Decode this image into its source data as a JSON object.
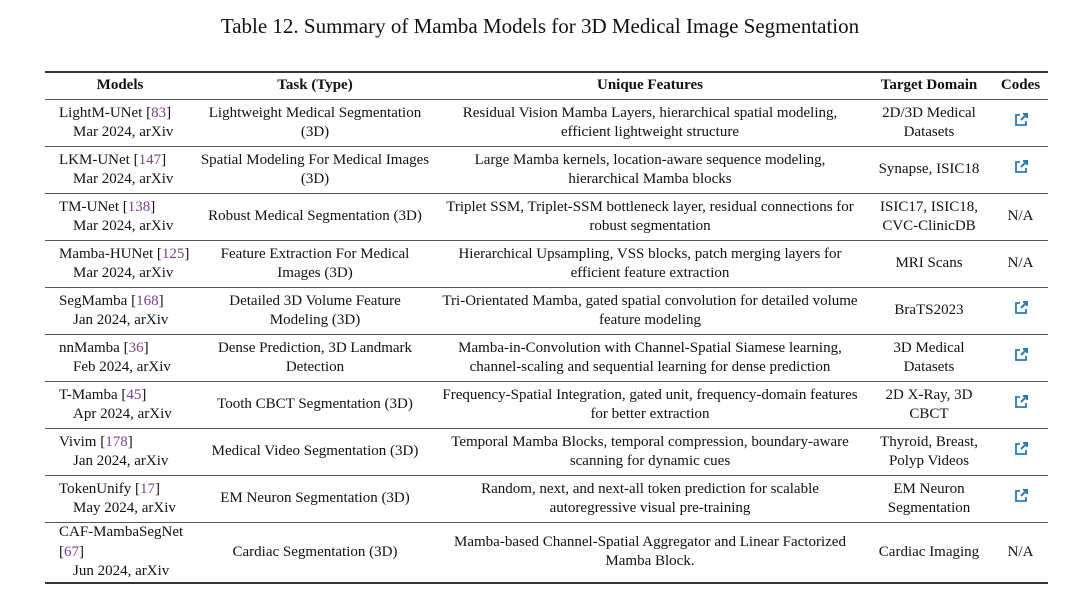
{
  "title": "Table 12.  Summary of Mamba Models for 3D Medical Image Segmentation",
  "columns": [
    "Models",
    "Task (Type)",
    "Unique Features",
    "Target Domain",
    "Codes"
  ],
  "link_color": "#2a7ab8",
  "cite_color": "#7b3f8c",
  "rows": [
    {
      "model": "LightM-UNet",
      "ref": "83",
      "date": "Mar 2024, arXiv",
      "task": "Lightweight Medical Segmentation (3D)",
      "features": "Residual Vision Mamba Layers, hierarchical spatial modeling, efficient lightweight structure",
      "domain": "2D/3D Medical Datasets",
      "code": "link"
    },
    {
      "model": "LKM-UNet",
      "ref": "147",
      "date": "Mar 2024, arXiv",
      "task": "Spatial Modeling For Medical Images (3D)",
      "features": "Large Mamba kernels, location-aware sequence modeling, hierarchical Mamba blocks",
      "domain": "Synapse, ISIC18",
      "code": "link"
    },
    {
      "model": "TM-UNet",
      "ref": "138",
      "date": "Mar 2024, arXiv",
      "task": "Robust Medical Segmentation (3D)",
      "features": "Triplet SSM, Triplet-SSM bottleneck layer, residual connections for robust segmentation",
      "domain": "ISIC17, ISIC18, CVC-ClinicDB",
      "code": "N/A"
    },
    {
      "model": "Mamba-HUNet",
      "ref": "125",
      "date": "Mar 2024, arXiv",
      "task": "Feature Extraction For Medical Images (3D)",
      "features": "Hierarchical Upsampling, VSS blocks, patch merging layers for efficient feature extraction",
      "domain": "MRI Scans",
      "code": "N/A"
    },
    {
      "model": "SegMamba",
      "ref": "168",
      "date": "Jan 2024, arXiv",
      "task": "Detailed 3D Volume Feature Modeling (3D)",
      "features": "Tri-Orientated Mamba, gated spatial convolution for detailed volume feature modeling",
      "domain": "BraTS2023",
      "code": "link"
    },
    {
      "model": "nnMamba",
      "ref": "36",
      "date": "Feb 2024, arXiv",
      "task": "Dense Prediction, 3D Landmark Detection",
      "features": "Mamba-in-Convolution with Channel-Spatial Siamese learning, channel-scaling and sequential learning for dense prediction",
      "domain": "3D Medical Datasets",
      "code": "link"
    },
    {
      "model": "T-Mamba",
      "ref": "45",
      "date": "Apr 2024, arXiv",
      "task": "Tooth CBCT Segmentation (3D)",
      "features": "Frequency-Spatial Integration, gated unit, frequency-domain features for better extraction",
      "domain": "2D X-Ray, 3D CBCT",
      "code": "link"
    },
    {
      "model": "Vivim",
      "ref": "178",
      "date": "Jan 2024, arXiv",
      "task": "Medical Video Segmentation (3D)",
      "features": "Temporal Mamba Blocks, temporal compression, boundary-aware scanning for dynamic cues",
      "domain": "Thyroid, Breast, Polyp Videos",
      "code": "link"
    },
    {
      "model": "TokenUnify",
      "ref": "17",
      "date": "May 2024, arXiv",
      "task": "EM Neuron Segmentation (3D)",
      "features": "Random, next, and next-all token prediction for scalable autoregressive visual pre-training",
      "domain": "EM Neuron Segmentation",
      "code": "link"
    },
    {
      "model": "CAF-MambaSegNet",
      "ref": "67",
      "date": "Jun 2024, arXiv",
      "task": "Cardiac Segmentation (3D)",
      "features": "Mamba-based Channel-Spatial Aggregator and Linear Factorized Mamba Block.",
      "domain": "Cardiac Imaging",
      "code": "N/A"
    }
  ]
}
